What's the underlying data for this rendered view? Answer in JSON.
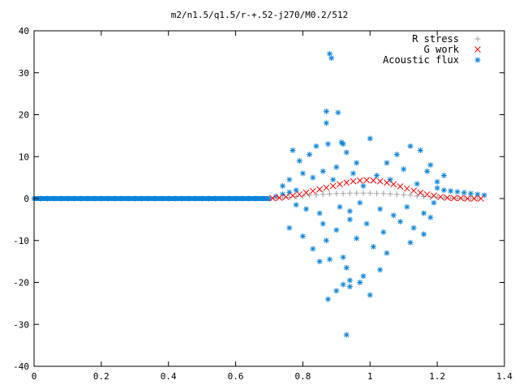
{
  "chart_data": {
    "type": "scatter",
    "title": "m2/n1.5/q1.5/r-+.52-j270/M0.2/512",
    "xlabel": "",
    "ylabel": "",
    "xlim": [
      0,
      1.4
    ],
    "ylim": [
      -40,
      40
    ],
    "x_ticks": [
      "0",
      "0.2",
      "0.4",
      "0.6",
      "0.8",
      "1",
      "1.2",
      "1.4"
    ],
    "y_ticks": [
      "-40",
      "-30",
      "-20",
      "-10",
      "0",
      "10",
      "20",
      "30",
      "40"
    ],
    "grid": false,
    "legend_position": "top-right",
    "series": [
      {
        "name": "R stress",
        "marker": "plus",
        "color": "#a0a0a0",
        "x": [
          0.72,
          0.74,
          0.76,
          0.78,
          0.8,
          0.82,
          0.84,
          0.86,
          0.88,
          0.9,
          0.92,
          0.94,
          0.96,
          0.98,
          1.0,
          1.02,
          1.04,
          1.06,
          1.08,
          1.1,
          1.12,
          1.14,
          1.16,
          1.18,
          1.2,
          1.22,
          1.24,
          1.26,
          1.28,
          1.3,
          1.32
        ],
        "y": [
          0.1,
          0.2,
          0.3,
          0.5,
          0.6,
          0.8,
          0.9,
          1.0,
          1.1,
          1.2,
          1.2,
          1.3,
          1.3,
          1.3,
          1.3,
          1.2,
          1.2,
          1.1,
          1.0,
          0.9,
          0.8,
          0.6,
          0.5,
          0.4,
          0.3,
          0.2,
          0.1,
          0.1,
          0.0,
          0.0,
          0.0
        ]
      },
      {
        "name": "G work",
        "marker": "cross",
        "color": "#ff0000",
        "x": [
          0.71,
          0.73,
          0.75,
          0.77,
          0.79,
          0.81,
          0.83,
          0.85,
          0.87,
          0.89,
          0.91,
          0.93,
          0.95,
          0.97,
          0.99,
          1.01,
          1.03,
          1.05,
          1.07,
          1.09,
          1.11,
          1.13,
          1.15,
          1.17,
          1.19,
          1.21,
          1.23,
          1.25,
          1.27,
          1.29,
          1.31,
          1.33
        ],
        "y": [
          0.1,
          0.2,
          0.4,
          0.7,
          1.0,
          1.4,
          1.8,
          2.2,
          2.6,
          3.0,
          3.4,
          3.8,
          4.1,
          4.3,
          4.4,
          4.3,
          4.1,
          3.8,
          3.4,
          2.9,
          2.4,
          1.9,
          1.4,
          1.0,
          0.7,
          0.4,
          0.2,
          0.1,
          0.1,
          0.0,
          0.0,
          0.0
        ]
      },
      {
        "name": "Acoustic flux",
        "marker": "star",
        "color": "#0a84d9",
        "x": [
          0.0,
          0.02,
          0.04,
          0.06,
          0.08,
          0.1,
          0.12,
          0.14,
          0.16,
          0.18,
          0.2,
          0.22,
          0.24,
          0.26,
          0.28,
          0.3,
          0.32,
          0.34,
          0.36,
          0.38,
          0.4,
          0.42,
          0.44,
          0.46,
          0.48,
          0.5,
          0.52,
          0.54,
          0.56,
          0.58,
          0.6,
          0.62,
          0.64,
          0.66,
          0.68,
          0.7,
          0.72,
          0.74,
          0.76,
          0.78,
          1.2,
          1.22,
          1.24,
          1.26,
          1.28,
          1.3,
          1.32,
          1.34,
          0.88,
          0.885,
          0.87,
          0.905,
          0.87,
          0.875,
          0.915,
          0.92,
          1.0,
          0.77,
          0.79,
          0.82,
          0.84,
          0.86,
          0.9,
          0.93,
          0.96,
          1.05,
          1.08,
          1.12,
          1.15,
          1.18,
          1.22,
          0.74,
          0.76,
          0.8,
          0.83,
          0.89,
          0.95,
          0.98,
          1.02,
          1.06,
          1.1,
          1.14,
          1.17,
          1.2,
          0.78,
          0.81,
          0.85,
          0.91,
          0.94,
          0.97,
          1.03,
          1.07,
          1.11,
          1.16,
          1.19,
          0.76,
          0.8,
          0.86,
          0.9,
          0.94,
          0.99,
          1.04,
          1.09,
          1.13,
          1.18,
          0.83,
          0.87,
          0.92,
          0.96,
          1.01,
          1.05,
          1.12,
          1.16,
          0.85,
          0.88,
          0.93,
          0.98,
          1.03,
          0.9,
          0.94,
          0.97,
          1.0,
          0.875,
          0.92,
          0.94,
          0.93
        ],
        "y": [
          0,
          0,
          0,
          0,
          0,
          0,
          0,
          0,
          0,
          0,
          0,
          0,
          0,
          0,
          0,
          0,
          0,
          0,
          0,
          0,
          0,
          0,
          0,
          0,
          0,
          0,
          0,
          0,
          0,
          0,
          0,
          0,
          0,
          0,
          0,
          0,
          0.5,
          1.0,
          1.5,
          2.0,
          2.5,
          2.0,
          1.8,
          1.6,
          1.4,
          1.2,
          1.0,
          0.8,
          34.5,
          33.5,
          20.8,
          20.5,
          18.0,
          13.0,
          13.4,
          13.0,
          14.3,
          11.5,
          9.0,
          10.5,
          12.5,
          6.5,
          7.5,
          11.0,
          8.5,
          8.5,
          10.5,
          12.5,
          11.5,
          8.0,
          5.5,
          3.0,
          4.5,
          6.0,
          5.0,
          4.5,
          6.0,
          3.0,
          5.5,
          4.5,
          7.0,
          3.5,
          6.5,
          4.0,
          -1.5,
          -2.5,
          -3.5,
          -2.0,
          -3.0,
          -1.0,
          -2.5,
          -4.0,
          -2.0,
          -3.5,
          -1.0,
          -7.0,
          -9.0,
          -6.0,
          -7.5,
          -5.0,
          -6.0,
          -8.0,
          -5.5,
          -7.0,
          -4.5,
          -12.0,
          -10.0,
          -14.0,
          -9.5,
          -11.5,
          -13.0,
          -10.5,
          -8.5,
          -15.0,
          -14.5,
          -16.5,
          -18.5,
          -17.0,
          -22.0,
          -21.0,
          -20.0,
          -23.0,
          -24.0,
          -20.5,
          -19.5,
          -32.5
        ]
      }
    ]
  }
}
